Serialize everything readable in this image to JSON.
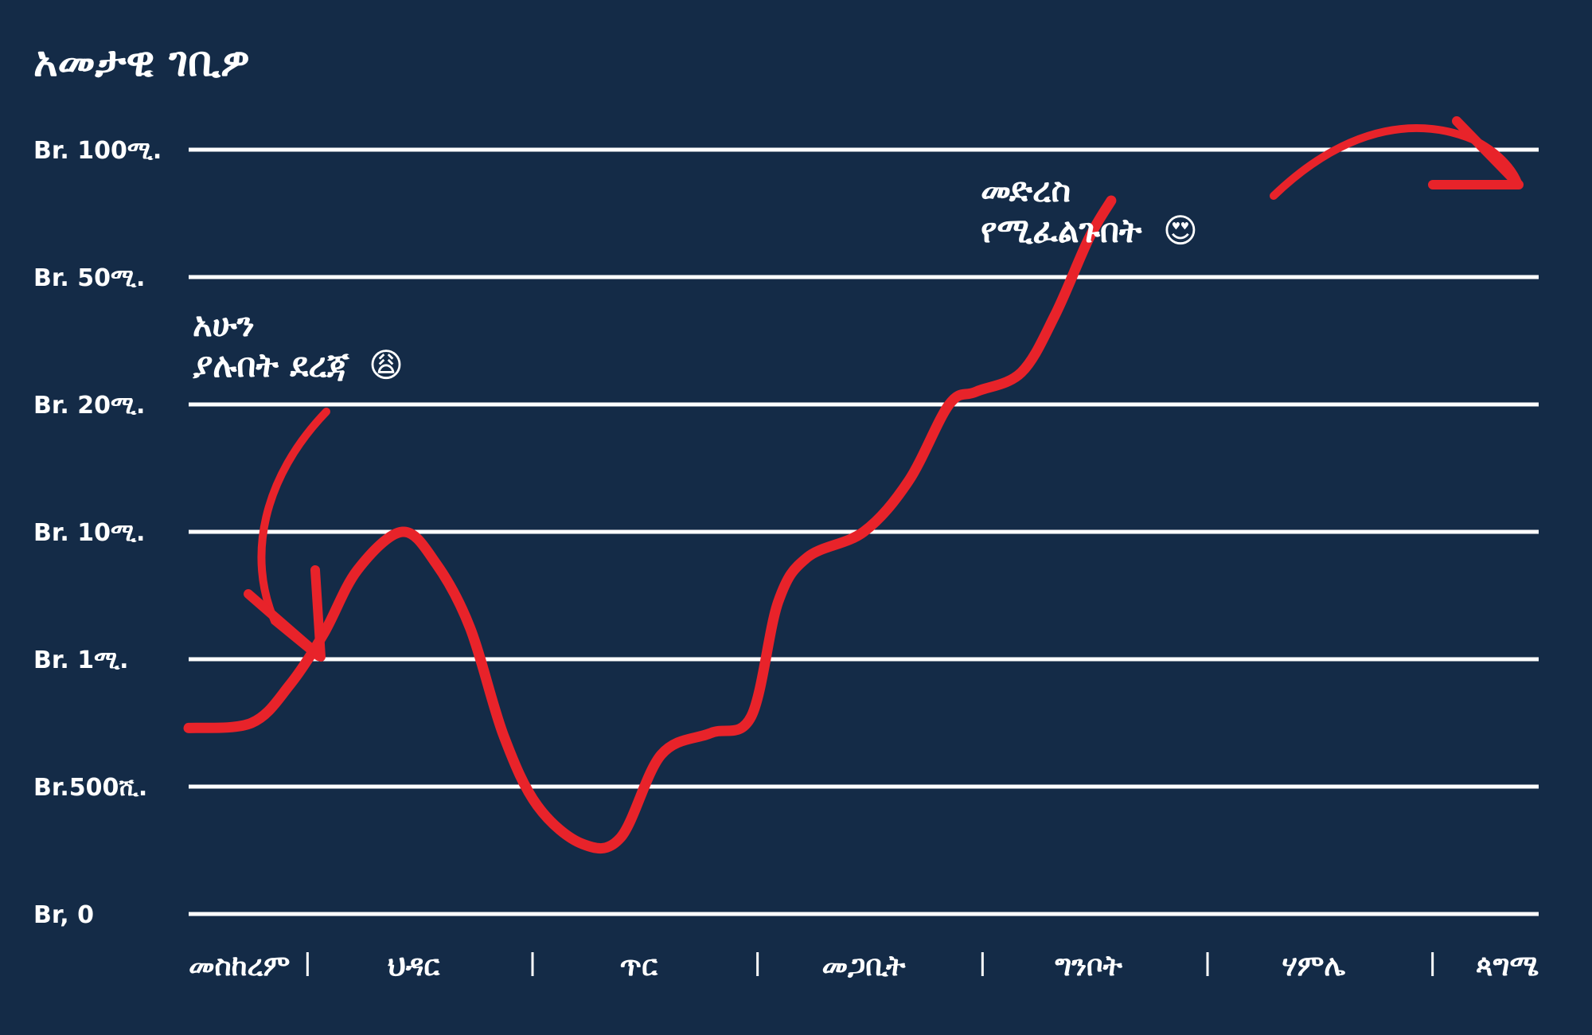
{
  "colors": {
    "background": "#142b47",
    "grid": "#ffffff",
    "line": "#e8232a",
    "text": "#ffffff"
  },
  "chart_data": {
    "type": "line",
    "title": "አመታዊ ገቢዎ",
    "y_scale": "ordinal",
    "y_levels": [
      0,
      500000,
      1000000,
      10000000,
      20000000,
      50000000,
      100000000
    ],
    "y_tick_labels": [
      "Br, 0",
      "Br.500ሺ.",
      "Br. 1ሚ.",
      "Br. 10ሚ.",
      "Br. 20ሚ.",
      "Br. 50ሚ.",
      "Br. 100ሚ."
    ],
    "categories": [
      "መስከረም",
      "ህዳር",
      "ጥር",
      "መጋቢት",
      "ግንቦት",
      "ሃምሌ",
      "ጳግሜ"
    ],
    "series": [
      {
        "values_level_index": [
          [
            0.0,
            1.46
          ],
          [
            0.28,
            1.5
          ],
          [
            0.45,
            1.8
          ],
          [
            0.6,
            2.2
          ],
          [
            0.75,
            2.7
          ],
          [
            0.95,
            3.0
          ],
          [
            1.1,
            2.75
          ],
          [
            1.25,
            2.25
          ],
          [
            1.4,
            1.4
          ],
          [
            1.55,
            0.85
          ],
          [
            1.75,
            0.55
          ],
          [
            1.92,
            0.6
          ],
          [
            2.1,
            1.25
          ],
          [
            2.32,
            1.42
          ],
          [
            2.5,
            1.55
          ],
          [
            2.62,
            2.45
          ],
          [
            2.75,
            2.8
          ],
          [
            3.0,
            3.0
          ],
          [
            3.2,
            3.4
          ],
          [
            3.38,
            4.0
          ],
          [
            3.5,
            4.1
          ],
          [
            3.7,
            4.25
          ],
          [
            3.85,
            4.7
          ],
          [
            4.0,
            5.3
          ],
          [
            4.1,
            5.6
          ]
        ]
      }
    ],
    "grid": true,
    "annotations": [
      {
        "lines": [
          "አሁን",
          "ያሉበት ደረጃ"
        ],
        "emoji": "😩"
      },
      {
        "lines": [
          "መድረስ",
          "የሚፈልጉበት"
        ],
        "emoji": "😍"
      }
    ]
  }
}
